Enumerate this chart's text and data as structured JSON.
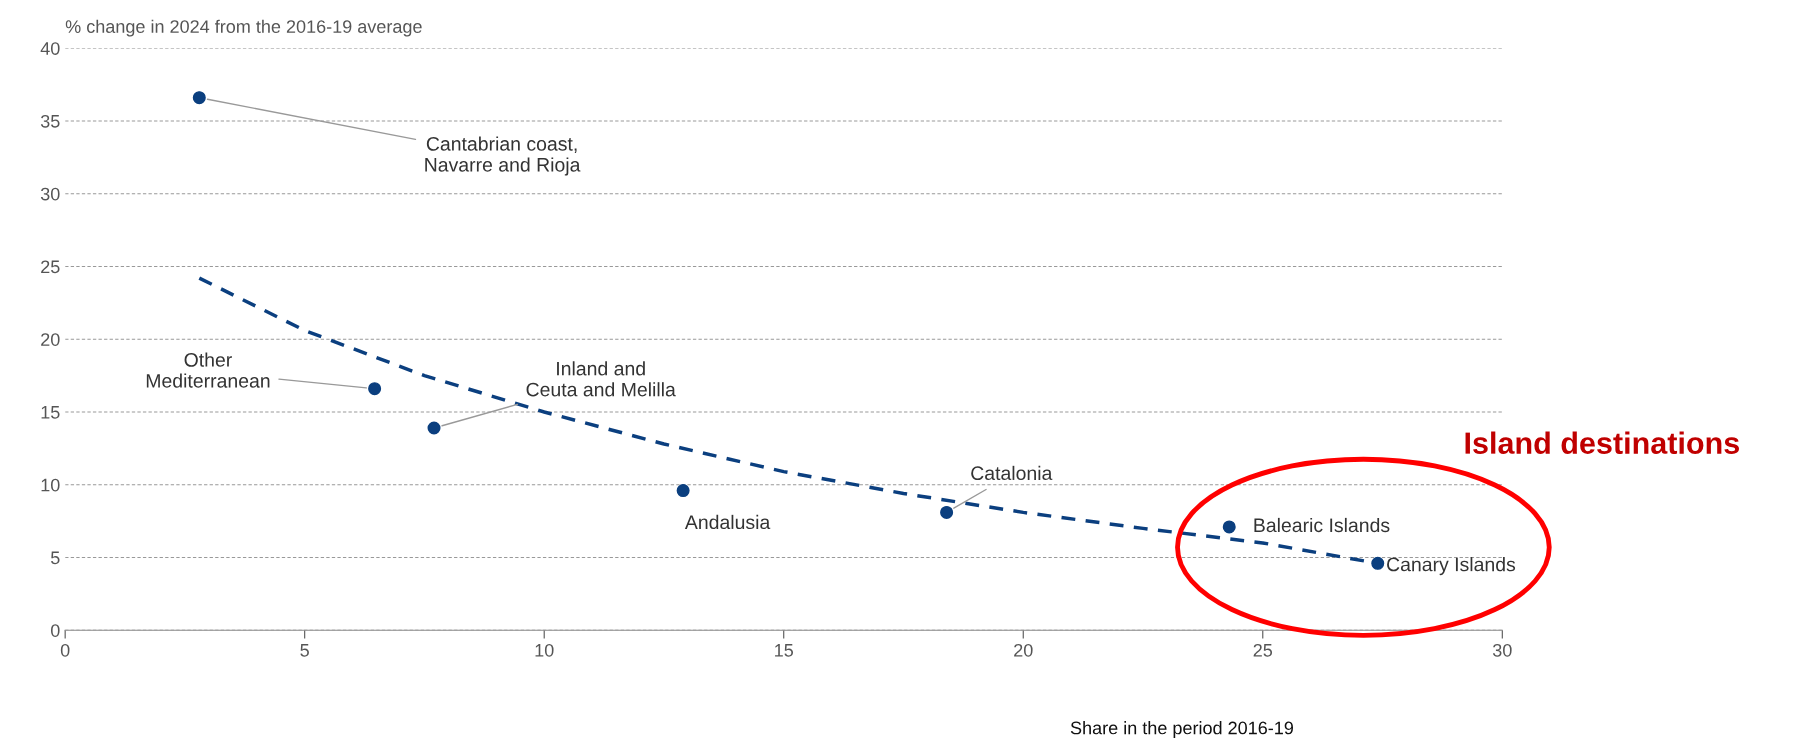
{
  "chart_data": {
    "type": "scatter",
    "ylabel": "% change in 2024 from the 2016-19 average",
    "xlabel": "Share in the period 2016-19",
    "xlim": [
      0,
      30
    ],
    "xticks": [
      0,
      5,
      10,
      15,
      20,
      25,
      30
    ],
    "ylim": [
      0,
      40
    ],
    "yticks": [
      0,
      5,
      10,
      15,
      20,
      25,
      30,
      35,
      40
    ],
    "grid": "y",
    "series": [
      {
        "marker": "circle",
        "color": "#0b3f7f",
        "x": [
          2.8,
          6.46,
          7.7,
          12.9,
          18.4,
          24.3,
          27.4
        ],
        "values": [
          36.6,
          16.6,
          13.9,
          9.6,
          8.1,
          7.1,
          4.6
        ]
      },
      {
        "type": "line",
        "marker": "none",
        "color": "#0b3f7f",
        "line_style": "dashed",
        "x": [
          2.8,
          5,
          7.5,
          10,
          12.5,
          15,
          17.5,
          20,
          22.5,
          25,
          27.4
        ],
        "values": [
          24.2,
          20.6,
          17.5,
          15.0,
          12.8,
          10.9,
          9.4,
          8.1,
          7.0,
          6.0,
          4.6
        ]
      }
    ],
    "annotations": [
      {
        "text": "Cantabrian coast,\nNavarre and Rioja",
        "x": 2.8,
        "y": 36.6
      },
      {
        "text": "Other\nMediterranean",
        "x": 6.46,
        "y": 16.6
      },
      {
        "text": "Inland and\nCeuta and Melilla",
        "x": 7.7,
        "y": 13.9
      },
      {
        "text": "Andalusia",
        "x": 12.9,
        "y": 9.6
      },
      {
        "text": "Catalonia",
        "x": 18.4,
        "y": 8.1
      },
      {
        "text": "Balearic Islands",
        "x": 24.3,
        "y": 7.1
      },
      {
        "text": "Canary Islands",
        "x": 27.4,
        "y": 4.6
      },
      "Island destinations"
    ]
  }
}
